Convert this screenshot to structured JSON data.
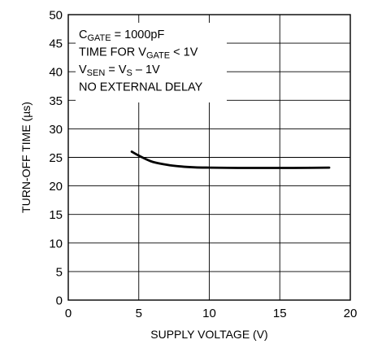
{
  "chart_data": {
    "type": "line",
    "title": "",
    "xlabel": "SUPPLY VOLTAGE (V)",
    "ylabel": "TURN-OFF TIME (µs)",
    "xlim": [
      0,
      20
    ],
    "ylim": [
      0,
      50
    ],
    "xticks": [
      0,
      5,
      10,
      15,
      20
    ],
    "yticks": [
      0,
      5,
      10,
      15,
      20,
      25,
      30,
      35,
      40,
      45,
      50
    ],
    "grid": true,
    "series": [
      {
        "x": [
          4.5,
          5,
          5.5,
          6,
          7,
          8,
          9,
          10,
          12,
          14,
          16,
          18.5
        ],
        "y": [
          26,
          25.3,
          24.7,
          24.2,
          23.7,
          23.4,
          23.25,
          23.2,
          23.15,
          23.15,
          23.15,
          23.2
        ]
      }
    ],
    "annotations": [
      {
        "segments": [
          {
            "text": "C"
          },
          {
            "text": "GATE",
            "sub": true
          },
          {
            "text": " = 1000pF"
          }
        ]
      },
      {
        "segments": [
          {
            "text": "TIME FOR V"
          },
          {
            "text": "GATE",
            "sub": true
          },
          {
            "text": " < 1V"
          }
        ]
      },
      {
        "segments": [
          {
            "text": "V"
          },
          {
            "text": "SEN",
            "sub": true
          },
          {
            "text": " = V"
          },
          {
            "text": "S",
            "sub": true
          },
          {
            "text": " – 1V"
          }
        ]
      },
      {
        "segments": [
          {
            "text": "NO EXTERNAL DELAY"
          }
        ]
      }
    ]
  }
}
